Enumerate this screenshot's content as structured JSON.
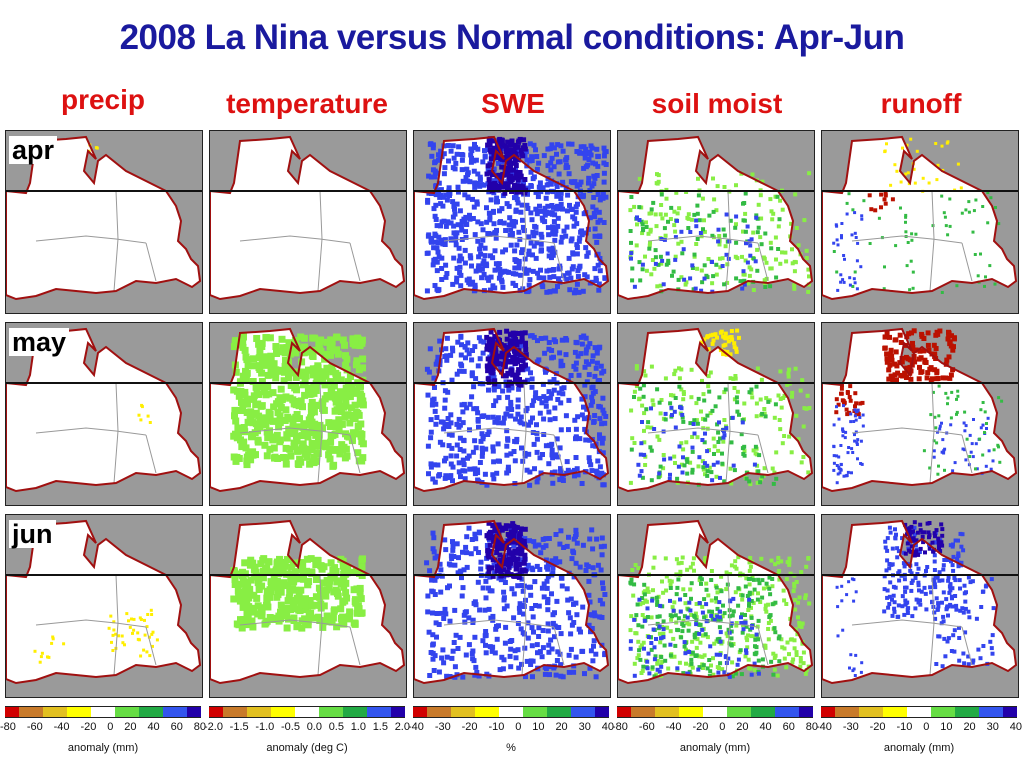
{
  "title": "2008 La Nina versus Normal conditions:  Apr-Jun",
  "columns": [
    {
      "label": "precip",
      "unit": "anomaly (mm)",
      "ticks": [
        "-80",
        "-60",
        "-40",
        "-20",
        "0",
        "20",
        "40",
        "60",
        "80"
      ]
    },
    {
      "label": "temperature",
      "unit": "anomaly (deg C)",
      "ticks": [
        "-2.0",
        "-1.5",
        "-1.0",
        "-0.5",
        "0.0",
        "0.5",
        "1.0",
        "1.5",
        "2.0"
      ]
    },
    {
      "label": "SWE",
      "unit": "%",
      "ticks": [
        "-40",
        "-30",
        "-20",
        "-10",
        "0",
        "10",
        "20",
        "30",
        "40"
      ]
    },
    {
      "label": "soil moist",
      "unit": "anomaly (mm)",
      "ticks": [
        "-80",
        "-60",
        "-40",
        "-20",
        "0",
        "20",
        "40",
        "60",
        "80"
      ]
    },
    {
      "label": "runoff",
      "unit": "anomaly (mm)",
      "ticks": [
        "-40",
        "-30",
        "-20",
        "-10",
        "0",
        "10",
        "20",
        "30",
        "40"
      ]
    }
  ],
  "rows": [
    {
      "label": "apr"
    },
    {
      "label": "may"
    },
    {
      "label": "jun"
    }
  ],
  "colors": {
    "background_gray": "#9a9a9a",
    "ocean": "#aeb0ee",
    "land": "#ffffff",
    "border": "#a01010",
    "colorbar": [
      "#d10000",
      "#c87a2a",
      "#e2c020",
      "#ffff00",
      "#ffffff",
      "#66dd44",
      "#22aa44",
      "#3355ee",
      "#2200aa"
    ]
  }
}
